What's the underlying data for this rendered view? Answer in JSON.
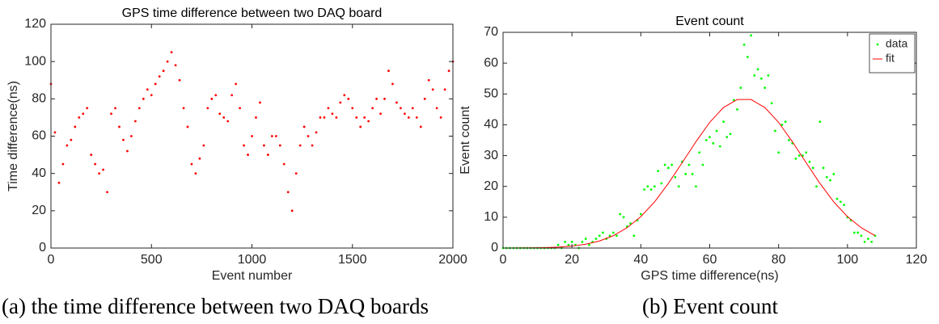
{
  "chart_data": [
    {
      "type": "scatter",
      "title": "GPS time difference between two DAQ board",
      "x_label": "Event number",
      "y_label": "Time difference(ns)",
      "caption": "(a) the time difference between two DAQ boards",
      "xlim": [
        0,
        2000
      ],
      "ylim": [
        0,
        120
      ],
      "xticks": [
        0,
        500,
        1000,
        1500,
        2000
      ],
      "yticks": [
        0,
        20,
        40,
        60,
        80,
        100,
        120
      ],
      "grid": false,
      "series": [
        {
          "name": "data",
          "color": "#ff0000",
          "mode": "markers",
          "x": [
            0,
            20,
            40,
            60,
            80,
            100,
            120,
            140,
            160,
            180,
            200,
            220,
            240,
            260,
            280,
            300,
            320,
            340,
            360,
            380,
            400,
            420,
            440,
            460,
            480,
            500,
            520,
            540,
            560,
            580,
            600,
            620,
            640,
            660,
            680,
            700,
            720,
            740,
            760,
            780,
            800,
            820,
            840,
            860,
            880,
            900,
            920,
            940,
            960,
            980,
            1000,
            1020,
            1040,
            1060,
            1080,
            1100,
            1120,
            1140,
            1160,
            1180,
            1200,
            1220,
            1240,
            1260,
            1280,
            1300,
            1320,
            1340,
            1360,
            1380,
            1400,
            1420,
            1440,
            1460,
            1480,
            1500,
            1520,
            1540,
            1560,
            1580,
            1600,
            1620,
            1640,
            1660,
            1680,
            1700,
            1720,
            1740,
            1760,
            1780,
            1800,
            1820,
            1840,
            1860,
            1880,
            1900,
            1920,
            1940,
            1960,
            1980,
            2000
          ],
          "values": [
            88,
            62,
            35,
            45,
            55,
            58,
            65,
            70,
            72,
            75,
            50,
            45,
            40,
            42,
            30,
            72,
            75,
            65,
            58,
            52,
            60,
            68,
            75,
            80,
            85,
            82,
            88,
            92,
            95,
            100,
            105,
            98,
            90,
            75,
            65,
            45,
            40,
            48,
            55,
            75,
            80,
            82,
            72,
            70,
            68,
            82,
            88,
            75,
            55,
            50,
            60,
            70,
            78,
            55,
            50,
            60,
            60,
            55,
            45,
            30,
            20,
            40,
            55,
            65,
            60,
            55,
            62,
            70,
            70,
            75,
            72,
            70,
            78,
            82,
            80,
            75,
            70,
            65,
            70,
            68,
            75,
            80,
            72,
            80,
            95,
            88,
            78,
            75,
            72,
            70,
            75,
            70,
            65,
            80,
            90,
            85,
            75,
            70,
            85,
            95,
            100
          ]
        }
      ]
    },
    {
      "type": "scatter",
      "title": "Event count",
      "x_label": "GPS time difference(ns)",
      "y_label": "Event count",
      "caption": "(b) Event count",
      "xlim": [
        0,
        120
      ],
      "ylim": [
        0,
        70
      ],
      "xticks": [
        0,
        20,
        40,
        60,
        80,
        100,
        120
      ],
      "yticks": [
        0,
        10,
        20,
        30,
        40,
        50,
        60,
        70
      ],
      "grid": false,
      "legend": "top-right",
      "series": [
        {
          "name": "data",
          "color": "#00ff00",
          "mode": "markers",
          "x": [
            0,
            1,
            2,
            3,
            4,
            5,
            6,
            7,
            8,
            9,
            10,
            11,
            12,
            13,
            14,
            15,
            16,
            17,
            18,
            19,
            20,
            21,
            22,
            23,
            24,
            25,
            26,
            27,
            28,
            29,
            30,
            31,
            32,
            33,
            34,
            35,
            36,
            37,
            38,
            39,
            40,
            41,
            42,
            43,
            44,
            45,
            46,
            47,
            48,
            49,
            50,
            51,
            52,
            53,
            54,
            55,
            56,
            57,
            58,
            59,
            60,
            61,
            62,
            63,
            64,
            65,
            66,
            67,
            68,
            69,
            70,
            71,
            72,
            73,
            74,
            75,
            76,
            77,
            78,
            79,
            80,
            81,
            82,
            83,
            84,
            85,
            86,
            87,
            88,
            89,
            90,
            91,
            92,
            93,
            94,
            95,
            96,
            97,
            98,
            99,
            100,
            101,
            102,
            103,
            104,
            105,
            106,
            107,
            108
          ],
          "values": [
            0,
            0,
            0,
            0,
            0,
            0,
            0,
            0,
            0,
            0,
            0,
            0,
            0,
            0,
            0,
            0,
            1,
            0,
            2,
            1,
            2,
            1,
            0,
            2,
            3,
            1,
            2,
            3,
            4,
            5,
            3,
            4,
            5,
            4,
            11,
            10,
            7,
            8,
            4,
            9,
            11,
            19,
            20,
            19,
            20,
            25,
            21,
            27,
            26,
            27,
            23,
            20,
            28,
            24,
            27,
            24,
            20,
            31,
            27,
            35,
            36,
            34,
            38,
            33,
            41,
            36,
            37,
            48,
            45,
            52,
            66,
            62,
            69,
            56,
            58,
            55,
            52,
            56,
            47,
            38,
            31,
            40,
            41,
            35,
            34,
            29,
            30,
            30,
            31,
            28,
            26,
            20,
            41,
            26,
            23,
            22,
            24,
            16,
            15,
            14,
            10,
            9,
            5,
            5,
            4,
            2,
            3,
            2,
            4
          ]
        },
        {
          "name": "fit",
          "color": "#ff0000",
          "mode": "line",
          "x": [
            0,
            4,
            8,
            12,
            16,
            20,
            24,
            28,
            32,
            36,
            40,
            44,
            48,
            52,
            56,
            60,
            64,
            68,
            72,
            76,
            80,
            84,
            88,
            92,
            96,
            100,
            104,
            108
          ],
          "values": [
            0.01,
            0.03,
            0.06,
            0.14,
            0.31,
            0.64,
            1.25,
            2.3,
            4.0,
            6.6,
            10.2,
            15.0,
            21.0,
            27.7,
            34.5,
            40.8,
            45.6,
            48.2,
            48.2,
            45.6,
            40.8,
            34.5,
            27.7,
            21.0,
            15.0,
            10.2,
            6.6,
            4.0
          ]
        }
      ]
    }
  ]
}
